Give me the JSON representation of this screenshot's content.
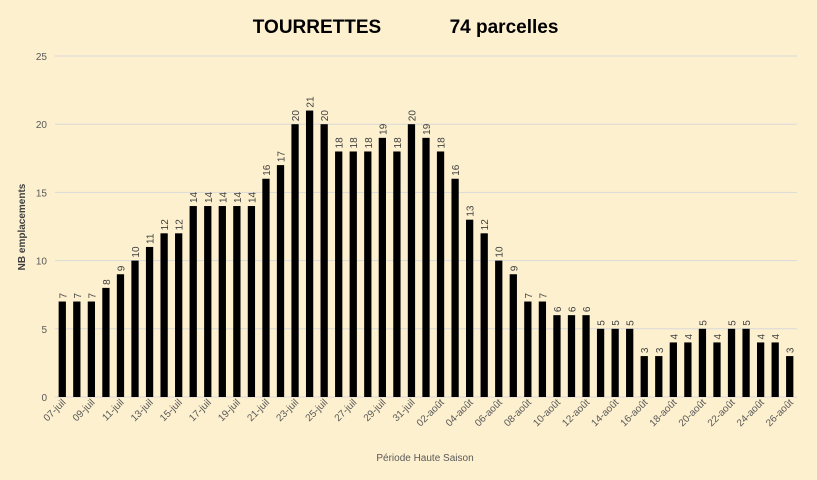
{
  "chart_data": {
    "type": "bar",
    "title_left": "TOURRETTES",
    "title_right": "74 parcelles",
    "xlabel": "Période Haute Saison",
    "ylabel": "NB emplacements",
    "ylim": [
      0,
      25
    ],
    "yticks": [
      0,
      5,
      10,
      15,
      20,
      25
    ],
    "grid": true,
    "categories": [
      "07-juil",
      "08-juil",
      "09-juil",
      "10-juil",
      "11-juil",
      "12-juil",
      "13-juil",
      "14-juil",
      "15-juil",
      "16-juil",
      "17-juil",
      "18-juil",
      "19-juil",
      "20-juil",
      "21-juil",
      "22-juil",
      "23-juil",
      "24-juil",
      "25-juil",
      "26-juil",
      "27-juil",
      "28-juil",
      "29-juil",
      "30-juil",
      "31-juil",
      "01-août",
      "02-août",
      "03-août",
      "04-août",
      "05-août",
      "06-août",
      "07-août",
      "08-août",
      "09-août",
      "10-août",
      "11-août",
      "12-août",
      "13-août",
      "14-août",
      "15-août",
      "16-août",
      "17-août",
      "18-août",
      "19-août",
      "20-août",
      "21-août",
      "22-août",
      "23-août",
      "24-août",
      "25-août",
      "26-août"
    ],
    "tick_labels_shown": [
      "07-juil",
      "09-juil",
      "11-juil",
      "13-juil",
      "15-juil",
      "17-juil",
      "19-juil",
      "21-juil",
      "23-juil",
      "25-juil",
      "27-juil",
      "29-juil",
      "31-juil",
      "02-août",
      "04-août",
      "06-août",
      "08-août",
      "10-août",
      "12-août",
      "14-août",
      "16-août",
      "18-août",
      "20-août",
      "22-août",
      "24-août",
      "26-août"
    ],
    "values": [
      7,
      7,
      7,
      8,
      9,
      10,
      11,
      12,
      12,
      14,
      14,
      14,
      14,
      14,
      16,
      17,
      20,
      21,
      20,
      18,
      18,
      18,
      19,
      18,
      20,
      19,
      18,
      16,
      13,
      12,
      10,
      9,
      7,
      7,
      6,
      6,
      6,
      5,
      5,
      5,
      3,
      3,
      4,
      4,
      5,
      4,
      5,
      5,
      4,
      4,
      3
    ],
    "bar_color": "#000000",
    "grid_color": "#d9d9d9",
    "background": "#fdf0cf"
  }
}
